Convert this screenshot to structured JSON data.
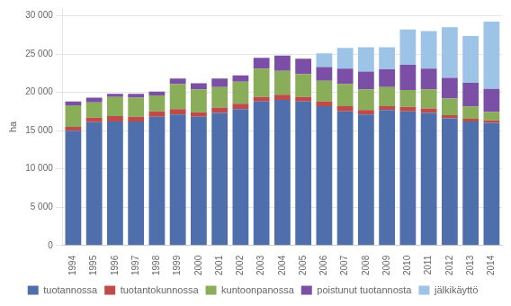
{
  "chart_data": {
    "type": "bar",
    "stacked": true,
    "categories": [
      "1994",
      "1995",
      "1996",
      "1997",
      "1998",
      "1999",
      "2000",
      "2001",
      "2002",
      "2003",
      "2004",
      "2005",
      "2006",
      "2007",
      "2008",
      "2009",
      "2010",
      "2011",
      "2012",
      "2013",
      "2014"
    ],
    "series": [
      {
        "name": "tuotannossa",
        "color": "#4f6fac",
        "values": [
          15000,
          16100,
          16200,
          16200,
          16800,
          17100,
          16800,
          17300,
          17800,
          18800,
          19000,
          18800,
          18200,
          17500,
          17100,
          17700,
          17500,
          17300,
          16600,
          16200,
          16000
        ]
      },
      {
        "name": "tuotantokunnossa",
        "color": "#be4b48",
        "values": [
          500,
          600,
          700,
          600,
          700,
          700,
          600,
          700,
          700,
          600,
          700,
          600,
          600,
          700,
          600,
          500,
          600,
          600,
          400,
          350,
          350
        ]
      },
      {
        "name": "kuntoonpanossa",
        "color": "#8aad5a",
        "values": [
          2800,
          2000,
          2500,
          2500,
          2100,
          3300,
          3000,
          2700,
          2900,
          3700,
          3100,
          3000,
          2700,
          2900,
          2700,
          2500,
          2200,
          2500,
          2200,
          1600,
          1100
        ]
      },
      {
        "name": "poistunut tuotannosta",
        "color": "#7b4fa6",
        "values": [
          500,
          600,
          400,
          500,
          500,
          700,
          800,
          1100,
          800,
          1400,
          2000,
          2000,
          1800,
          2000,
          2300,
          2300,
          3300,
          2700,
          2700,
          3100,
          3000
        ]
      },
      {
        "name": "jälkikäyttö",
        "color": "#9dc3e6",
        "values": [
          0,
          0,
          0,
          0,
          0,
          0,
          0,
          0,
          0,
          0,
          0,
          0,
          1800,
          2700,
          3200,
          2900,
          4600,
          4900,
          6600,
          6100,
          8800
        ]
      }
    ],
    "ylabel": "ha",
    "ylim": [
      0,
      31000
    ],
    "yticks": [
      0,
      {
        "value": 5000,
        "label": "5 000"
      },
      {
        "value": 10000,
        "label": "10 000"
      },
      {
        "value": 15000,
        "label": "15 000"
      },
      {
        "value": 20000,
        "label": "20 000"
      },
      {
        "value": 25000,
        "label": "25 000"
      },
      {
        "value": 30000,
        "label": "30 000"
      }
    ],
    "grid": true,
    "legend": "bottom"
  }
}
